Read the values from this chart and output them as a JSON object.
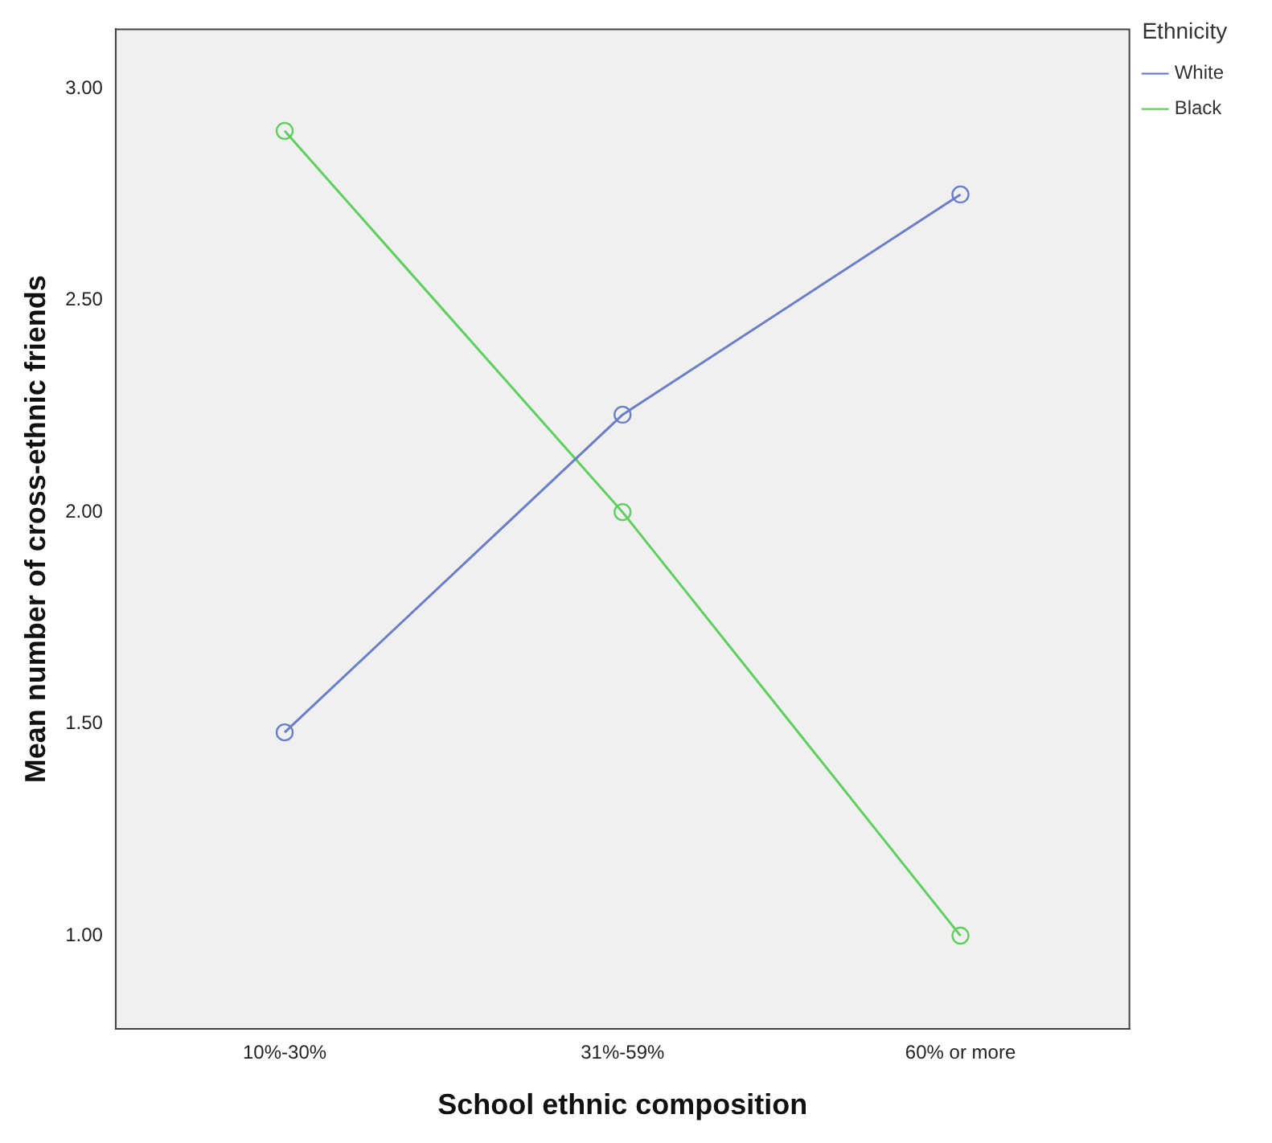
{
  "chart_data": {
    "type": "line",
    "xlabel": "School ethnic composition",
    "ylabel": "Mean number of cross-ethnic friends",
    "legend_title": "Ethnicity",
    "categories": [
      "10%-30%",
      "31%-59%",
      "60% or more"
    ],
    "series": [
      {
        "name": "White",
        "color": "#6b7fc9",
        "values": [
          1.48,
          2.23,
          2.75
        ]
      },
      {
        "name": "Black",
        "color": "#5fcf5f",
        "values": [
          2.9,
          2.0,
          1.0
        ]
      }
    ],
    "ylim": [
      0.78,
      3.14
    ],
    "yticks": [
      {
        "value": 1,
        "label": "1.00"
      },
      {
        "value": 1.5,
        "label": "1.50"
      },
      {
        "value": 2,
        "label": "2.00"
      },
      {
        "value": 2.5,
        "label": "2.50"
      },
      {
        "value": 3,
        "label": "3.00"
      }
    ],
    "grid": false,
    "legend": "top right",
    "marker": "circle",
    "line_style": "solid"
  }
}
